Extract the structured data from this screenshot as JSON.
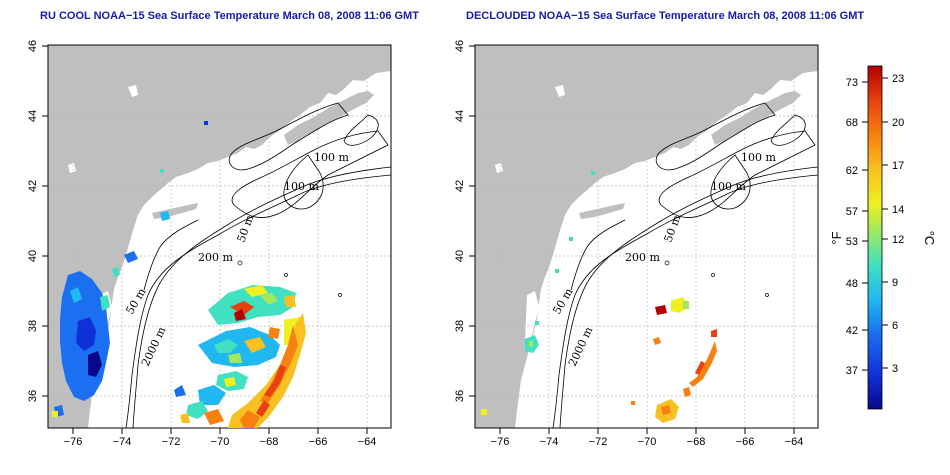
{
  "panels": [
    {
      "id": "left",
      "title": "RU COOL NOAA−15 Sea Surface Temperature March 08, 2008 11:06 GMT"
    },
    {
      "id": "right",
      "title": "DECLOUDED NOAA−15 Sea Surface Temperature March 08, 2008 11:06 GMT"
    }
  ],
  "axes": {
    "x_ticks": [
      "−76",
      "−74",
      "−72",
      "−70",
      "−68",
      "−66",
      "−64"
    ],
    "y_ticks": [
      "36",
      "38",
      "40",
      "42",
      "44",
      "46"
    ]
  },
  "contour_labels": {
    "left": [
      "100 m",
      "100 m",
      "50 m",
      "200 m",
      "50 m",
      "2000 m"
    ],
    "right": [
      "100 m",
      "100 m",
      "50 m",
      "200 m",
      "50 m",
      "2000 m"
    ]
  },
  "colorbar": {
    "f_label": "°F",
    "c_label": "°C",
    "f_ticks": [
      "73",
      "68",
      "62",
      "57",
      "53",
      "48",
      "42",
      "37"
    ],
    "c_ticks": [
      "23",
      "20",
      "17",
      "14",
      "12",
      "9",
      "6",
      "3"
    ],
    "colors": [
      "#08088a",
      "#1030d8",
      "#1a70f0",
      "#20b8f0",
      "#40e0c0",
      "#a0e860",
      "#f0f020",
      "#f8c020",
      "#f88010",
      "#e84010",
      "#b00000"
    ]
  },
  "colors": {
    "land": "#bfbfbf",
    "title": "#1a1aa8",
    "grid": "#bbbbbb"
  }
}
